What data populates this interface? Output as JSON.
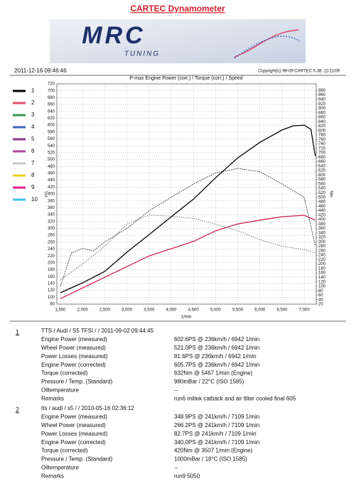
{
  "header": {
    "title": "CARTEC Dynamometer",
    "logo": "MRC",
    "logo_sub": "TUNING",
    "timestamp": "2011-12-16 09:46:46",
    "copyright": "Copyright(c) 98-09 CARTEC 5.38, 11/11/09"
  },
  "chart_data": {
    "type": "line",
    "title": "P-max Engine Power (corr.) / Torque (corr.) / Speed",
    "x_label": "1/min",
    "y_label": "PS",
    "y2_label": "Nm",
    "xlim": [
      1420,
      7270
    ],
    "ylim": [
      80,
      720
    ],
    "y2lim": [
      20,
      1010
    ],
    "xticks": [
      {
        "value": 1500,
        "label": "1,500"
      },
      {
        "value": 2000,
        "label": "2,000"
      },
      {
        "value": 2500,
        "label": "2,500"
      },
      {
        "value": 3000,
        "label": "3,000"
      },
      {
        "value": 3500,
        "label": "3,500"
      },
      {
        "value": 4000,
        "label": "4,000"
      },
      {
        "value": 4500,
        "label": "4,500"
      },
      {
        "value": 5000,
        "label": "5,000"
      },
      {
        "value": 5500,
        "label": "5,500"
      },
      {
        "value": 6000,
        "label": "6,000"
      },
      {
        "value": 6500,
        "label": "6,500"
      },
      {
        "value": 7000,
        "label": "7,000"
      }
    ],
    "yticks": [
      80,
      100,
      120,
      140,
      160,
      180,
      200,
      220,
      240,
      260,
      280,
      300,
      320,
      340,
      360,
      380,
      400,
      420,
      440,
      460,
      480,
      500,
      520,
      540,
      560,
      580,
      600,
      620,
      640,
      660,
      680,
      700,
      720
    ],
    "y2ticks": [
      20,
      40,
      60,
      80,
      100,
      120,
      140,
      160,
      180,
      200,
      220,
      240,
      260,
      280,
      300,
      320,
      340,
      360,
      380,
      400,
      420,
      440,
      460,
      480,
      500,
      520,
      540,
      560,
      580,
      600,
      620,
      640,
      660,
      680,
      700,
      720,
      740,
      760,
      780,
      800,
      820,
      840,
      860,
      880,
      900,
      920,
      940,
      960,
      980
    ],
    "grid": true,
    "series": [
      {
        "color": "#000000",
        "style": "solid",
        "x": [
          1500,
          2000,
          2500,
          3000,
          3500,
          4000,
          4500,
          5000,
          5500,
          6000,
          6500,
          6750,
          7000,
          7150,
          7250
        ],
        "values": [
          113,
          142,
          175,
          231,
          282,
          334,
          385,
          447,
          505,
          550,
          586,
          598,
          600,
          588,
          510
        ]
      },
      {
        "color": "#d0204a",
        "style": "solid",
        "x": [
          1500,
          2000,
          2500,
          3000,
          3500,
          4000,
          4500,
          5000,
          5500,
          6000,
          6500,
          7000,
          7250
        ],
        "values": [
          96,
          127,
          158,
          189,
          220,
          241,
          262,
          293,
          313,
          324,
          334,
          338,
          324
        ]
      },
      {
        "color": "#222222",
        "style": "dotted",
        "axis": "y2",
        "x": [
          1500,
          1750,
          2000,
          2250,
          2500,
          3000,
          3500,
          4000,
          4500,
          5000,
          5500,
          6000,
          6500,
          7000,
          7250
        ],
        "values": [
          100,
          250,
          270,
          260,
          300,
          360,
          440,
          500,
          560,
          610,
          630,
          615,
          560,
          500,
          282
        ]
      },
      {
        "color": "#777777",
        "style": "dotted",
        "axis": "y2",
        "x": [
          1500,
          2000,
          2500,
          3000,
          3500,
          4000,
          4500,
          5000,
          5500,
          6000,
          6500,
          7000,
          7250
        ],
        "values": [
          130,
          200,
          280,
          380,
          420,
          415,
          405,
          380,
          350,
          310,
          280,
          265,
          250
        ]
      }
    ],
    "legend": [
      {
        "label": "1",
        "color": "#000000"
      },
      {
        "label": "2",
        "color": "#e0506a"
      },
      {
        "label": "3",
        "color": "#3a9a50"
      },
      {
        "label": "4",
        "color": "#4060c0"
      },
      {
        "label": "5",
        "color": "#8a3a8a"
      },
      {
        "label": "6",
        "color": "#b04aa0"
      },
      {
        "label": "7",
        "color": "#c8c8c8"
      },
      {
        "label": "8",
        "color": "#e8d020"
      },
      {
        "label": "9",
        "color": "#e0208a"
      },
      {
        "label": "10",
        "color": "#40c0e8"
      }
    ]
  },
  "runs": [
    {
      "number": "1",
      "title": "TTS / Audi / S5 TFSI / / 2011-09-02 09:44:45",
      "rows": [
        [
          "Engine Power (measured)",
          "602.6PS @ 236km/h / 6942 1/min"
        ],
        [
          "Wheel Power (measured)",
          "521.0PS @ 236km/h / 6942 1/min"
        ],
        [
          "Power Losses (measured)",
          "81.6PS @ 236km/h / 6942 1/min"
        ],
        [
          "Engine Power (corrected)",
          "605.7PS @ 236km/h / 6942 1/min"
        ],
        [
          "Torque (corrected)",
          "632Nm @ 5467 1/min (Engine)"
        ],
        [
          "Pressure / Temp. (Standard)",
          "980mBar / 22°C    (ISO 1585)"
        ],
        [
          "Oiltemperature",
          "--"
        ],
        [
          "Remarks",
          "run6 miltek catback and air filter cooled final 605"
        ]
      ]
    },
    {
      "number": "2",
      "title": "tts / audi / s5 / / 2010-05-16 02:36:12",
      "rows": [
        [
          "Engine Power (measured)",
          "348.9PS @ 241km/h / 7109 1/min"
        ],
        [
          "Wheel Power (measured)",
          "266.2PS @ 241km/h / 7109 1/min"
        ],
        [
          "Power Losses (measured)",
          "82.7PS @ 241km/h / 7109 1/min"
        ],
        [
          "Engine Power (corrected)",
          "340.0PS @ 241km/h / 7109 1/min"
        ],
        [
          "Torque (corrected)",
          "420Nm @ 3507 1/min (Engine)"
        ],
        [
          "Pressure / Temp. (Standard)",
          "1000mBar / 18°C    (ISO 1585)"
        ],
        [
          "Oiltemperature",
          "--"
        ],
        [
          "Remarks",
          "run9 5050"
        ]
      ]
    }
  ]
}
